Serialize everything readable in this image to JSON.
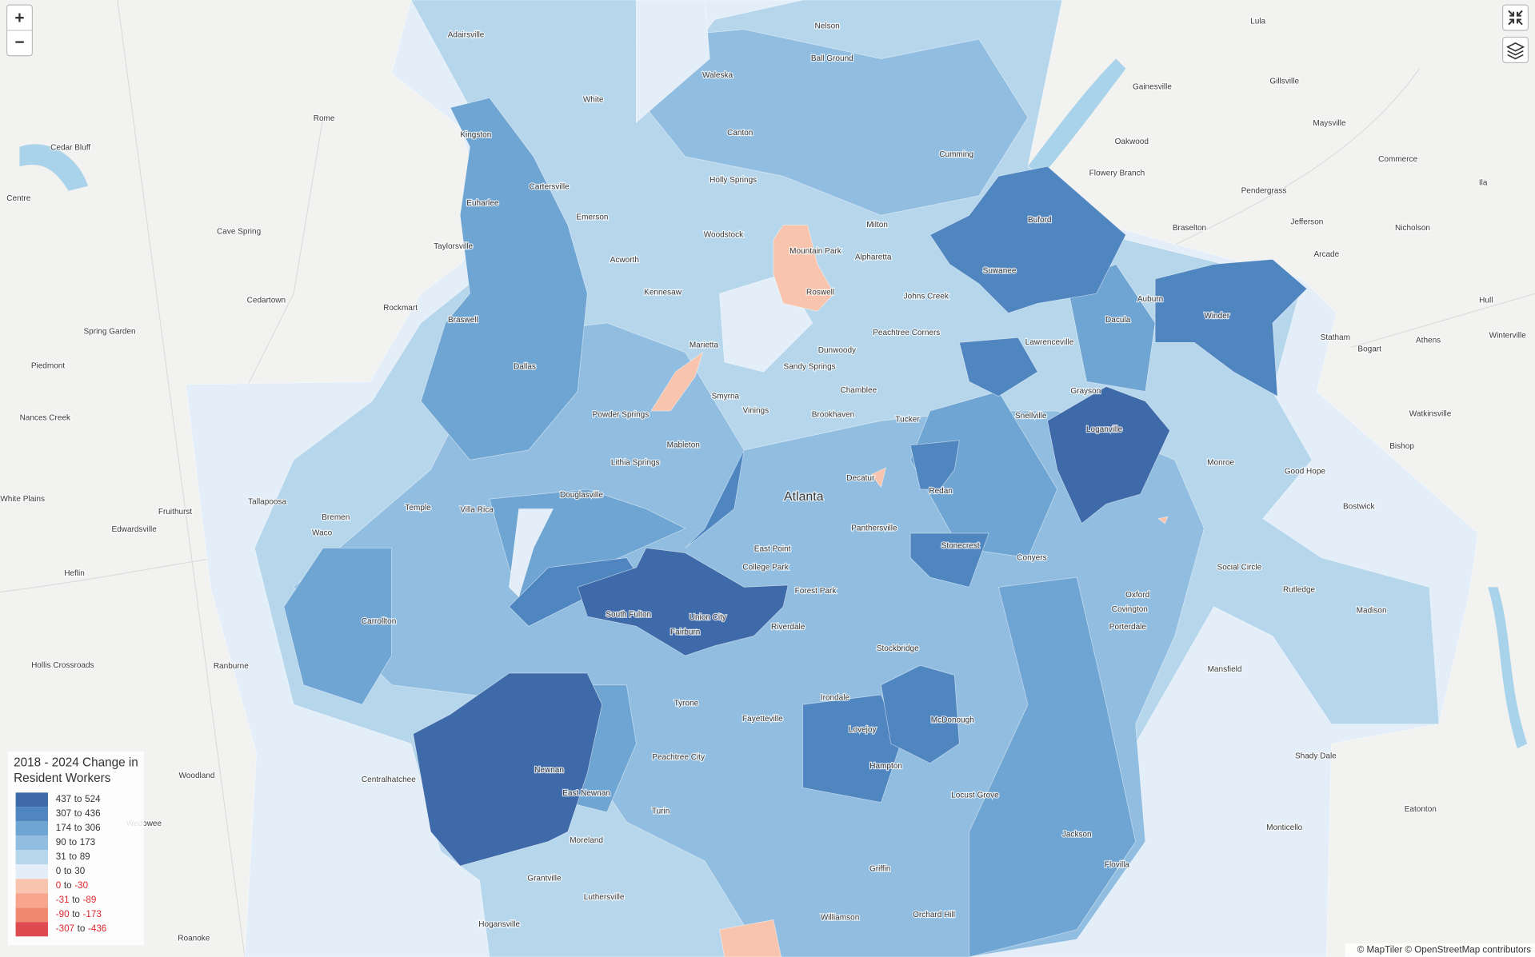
{
  "map": {
    "city_label": "Atlanta",
    "places": [
      "Adairsville",
      "Nelson",
      "Lula",
      "Ball Ground",
      "Waleska",
      "Gainesville",
      "Gillsville",
      "White",
      "Rome",
      "Canton",
      "Maysville",
      "Kingston",
      "Cedar Bluff",
      "Oakwood",
      "Cumming",
      "Commerce",
      "Flowery Branch",
      "Holly Springs",
      "Cartersville",
      "Pendergrass",
      "Centre",
      "Euharlee",
      "Emerson",
      "Buford",
      "Ila",
      "Milton",
      "Jefferson",
      "Braselton",
      "Nicholson",
      "Woodstock",
      "Cave Spring",
      "Mountain Park",
      "Alpharetta",
      "Arcade",
      "Taylorsville",
      "Acworth",
      "Suwanee",
      "Auburn",
      "Hull",
      "Winder",
      "Roswell",
      "Kennesaw",
      "Johns Creek",
      "Cedartown",
      "Rockmart",
      "Dacula",
      "Braswell",
      "Spring Garden",
      "Peachtree Corners",
      "Statham",
      "Athens",
      "Winterville",
      "Bogart",
      "Marietta",
      "Lawrenceville",
      "Dunwoody",
      "Piedmont",
      "Dallas",
      "Sandy Springs",
      "Grayson",
      "Chamblee",
      "Smyrna",
      "Nances Creek",
      "Vinings",
      "Powder Springs",
      "Brookhaven",
      "Tucker",
      "Snellville",
      "Loganville",
      "Watkinsville",
      "Bishop",
      "Mableton",
      "Decatur",
      "Lithia Springs",
      "Monroe",
      "Good Hope",
      "Redan",
      "White Plains",
      "Fruithurst",
      "Douglasville",
      "Tallapoosa",
      "Bremen",
      "Temple",
      "Villa Rica",
      "Bostwick",
      "Edwardsville",
      "Panthersville",
      "Waco",
      "East Point",
      "Stonecrest",
      "Conyers",
      "Heflin",
      "Social Circle",
      "College Park",
      "Rutledge",
      "Forest Park",
      "Oxford",
      "Covington",
      "South Fulton",
      "Union City",
      "Carrollton",
      "Madison",
      "Riverdale",
      "Porterdale",
      "Fairburn",
      "Stockbridge",
      "Ranburne",
      "Hollis Crossroads",
      "Mansfield",
      "Irondale",
      "Tyrone",
      "Fayetteville",
      "McDonough",
      "Lovejoy",
      "Shady Dale",
      "Peachtree City",
      "Hampton",
      "Woodland",
      "Newnan",
      "Centralhatchee",
      "East Newnan",
      "Locust Grove",
      "Eatonton",
      "Turin",
      "Wedowee",
      "Monticello",
      "Jackson",
      "Moreland",
      "Flovilla",
      "Griffin",
      "Grantville",
      "Luthersville",
      "Hogansville",
      "Williamson",
      "Orchard Hill",
      "Roanoke"
    ],
    "legend": {
      "title": "2018 - 2024 Change in Resident Workers",
      "joiner": "to",
      "items": [
        {
          "from": "437",
          "to": "524",
          "color": "#3e6aa9",
          "text_color": "#333333"
        },
        {
          "from": "307",
          "to": "436",
          "color": "#4f86c0",
          "text_color": "#333333"
        },
        {
          "from": "174",
          "to": "306",
          "color": "#6fa5d2",
          "text_color": "#333333"
        },
        {
          "from": "90",
          "to": "173",
          "color": "#90bde0",
          "text_color": "#333333"
        },
        {
          "from": "31",
          "to": "89",
          "color": "#b6d6ec",
          "text_color": "#333333"
        },
        {
          "from": "0",
          "to": "30",
          "color": "#e3eef8",
          "text_color": "#333333"
        },
        {
          "from": "0",
          "to": "-30",
          "color": "#f8c4ad",
          "text_color": "#e0282e"
        },
        {
          "from": "-31",
          "to": "-89",
          "color": "#f7a58c",
          "text_color": "#e0282e"
        },
        {
          "from": "-90",
          "to": "-173",
          "color": "#f08870",
          "text_color": "#e0282e"
        },
        {
          "from": "-307",
          "to": "-436",
          "color": "#dd4b50",
          "text_color": "#e0282e"
        }
      ]
    },
    "controls": {
      "zoom_in": "+",
      "zoom_out": "−"
    },
    "attribution": "© MapTiler © OpenStreetMap contributors"
  }
}
